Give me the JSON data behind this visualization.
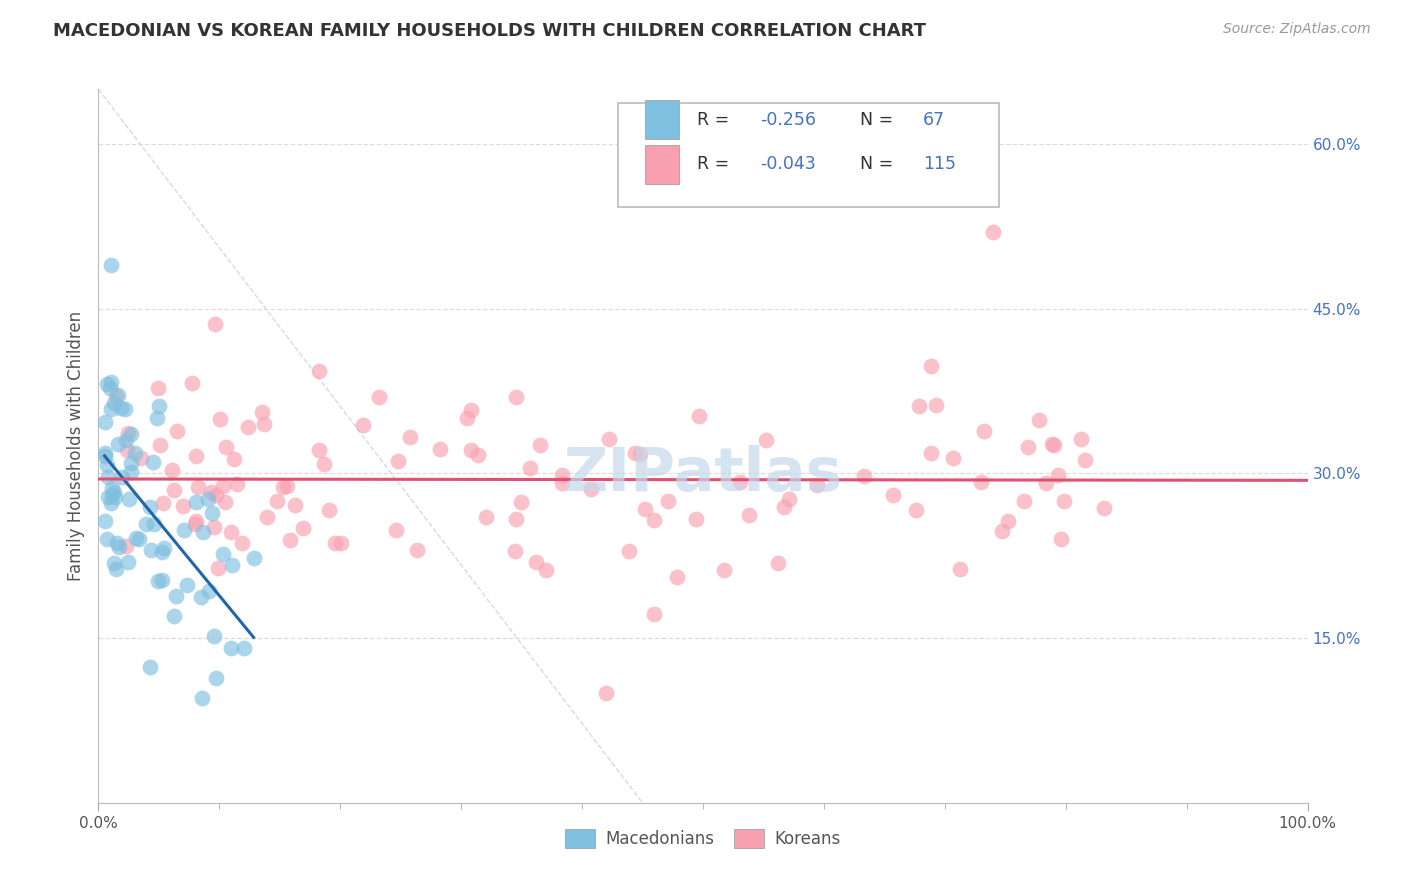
{
  "title": "MACEDONIAN VS KOREAN FAMILY HOUSEHOLDS WITH CHILDREN CORRELATION CHART",
  "source": "Source: ZipAtlas.com",
  "ylabel": "Family Households with Children",
  "xlim": [
    0,
    100
  ],
  "ylim": [
    0,
    65
  ],
  "ytick_vals": [
    0,
    15,
    30,
    45,
    60
  ],
  "ytick_labels": [
    "",
    "15.0%",
    "30.0%",
    "45.0%",
    "60.0%"
  ],
  "xtick_vals": [
    0,
    100
  ],
  "xtick_labels": [
    "0.0%",
    "100.0%"
  ],
  "legend_r1": "-0.256",
  "legend_n1": "67",
  "legend_r2": "-0.043",
  "legend_n2": "115",
  "macedonian_color": "#7fbfdf",
  "macedonian_edge": "#7fbfdf",
  "korean_color": "#f9a0b0",
  "korean_edge": "#f9a0b0",
  "trend_mac_color": "#2166ac",
  "trend_kor_color": "#e05070",
  "diag_color": "#ccddee",
  "watermark": "ZIPatlas",
  "watermark_color": "#c5d8ec",
  "grid_color": "#dddddd",
  "mac_seed": 12,
  "kor_seed": 7
}
